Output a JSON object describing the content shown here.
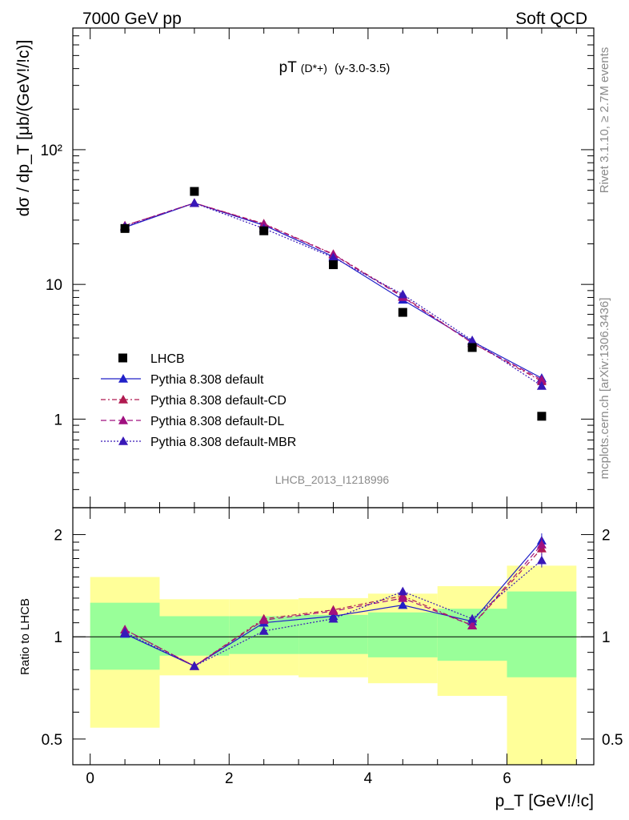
{
  "header": {
    "left": "7000 GeV pp",
    "right": "Soft QCD"
  },
  "side_text": {
    "rivet": "Rivet 3.1.10, ≥ 2.7M events",
    "mcplots": "mcplots.cern.ch [arXiv:1306.3436]"
  },
  "chart_data": {
    "type": "scatter",
    "title_main": "pT",
    "title_particle": "(D*+)",
    "title_range": "(y-3.0-3.5)",
    "analysis_label": "LHCB_2013_I1218996",
    "ylabel": "dσ / dp_T [μb/(GeV!/!c)]",
    "xlabel": "p_T [GeV!/!c]",
    "ratio_ylabel": "Ratio to LHCB",
    "yscale": "log",
    "xlim": [
      -0.25,
      7.25
    ],
    "ylim": [
      0.22,
      800
    ],
    "ratio_ylim": [
      0.42,
      2.4
    ],
    "x_ticks": [
      "0",
      "2",
      "4",
      "6"
    ],
    "y_ticks": [
      "1",
      "10",
      "10²"
    ],
    "ratio_ticks": [
      "0.5",
      "1",
      "2"
    ],
    "legend_position": "lower-left",
    "x": [
      0.5,
      1.5,
      2.5,
      3.5,
      4.5,
      5.5,
      6.5
    ],
    "bins": [
      [
        0,
        1
      ],
      [
        1,
        2
      ],
      [
        2,
        3
      ],
      [
        3,
        4
      ],
      [
        4,
        5
      ],
      [
        5,
        6
      ],
      [
        6,
        7
      ]
    ],
    "data": {
      "name": "LHCB",
      "color": "#000000",
      "values": [
        26.0,
        49.0,
        25.0,
        14.0,
        6.2,
        3.4,
        1.05
      ]
    },
    "series": [
      {
        "name": "Pythia 8.308 default",
        "color": "#2020c8",
        "dash": "",
        "ratio": [
          1.02,
          0.82,
          1.1,
          1.15,
          1.24,
          1.11,
          1.92
        ]
      },
      {
        "name": "Pythia 8.308 default-CD",
        "color": "#b01a50",
        "dash": "6,3,2,3",
        "ratio": [
          1.05,
          0.82,
          1.13,
          1.2,
          1.32,
          1.08,
          1.82
        ]
      },
      {
        "name": "Pythia 8.308 default-DL",
        "color": "#a01080",
        "dash": "7,4",
        "ratio": [
          1.05,
          0.82,
          1.12,
          1.19,
          1.3,
          1.08,
          1.87
        ]
      },
      {
        "name": "Pythia 8.308 default-MBR",
        "color": "#3818b8",
        "dash": "2,2",
        "ratio": [
          1.03,
          0.82,
          1.04,
          1.13,
          1.36,
          1.13,
          1.68
        ]
      }
    ],
    "band_green": [
      [
        0.8,
        1.26
      ],
      [
        0.88,
        1.15
      ],
      [
        0.89,
        1.15
      ],
      [
        0.89,
        1.16
      ],
      [
        0.87,
        1.18
      ],
      [
        0.85,
        1.21
      ],
      [
        0.76,
        1.36
      ]
    ],
    "band_yellow": [
      [
        0.54,
        1.5
      ],
      [
        0.77,
        1.29
      ],
      [
        0.77,
        1.29
      ],
      [
        0.76,
        1.3
      ],
      [
        0.73,
        1.34
      ],
      [
        0.67,
        1.41
      ],
      [
        0.42,
        1.62
      ]
    ]
  }
}
